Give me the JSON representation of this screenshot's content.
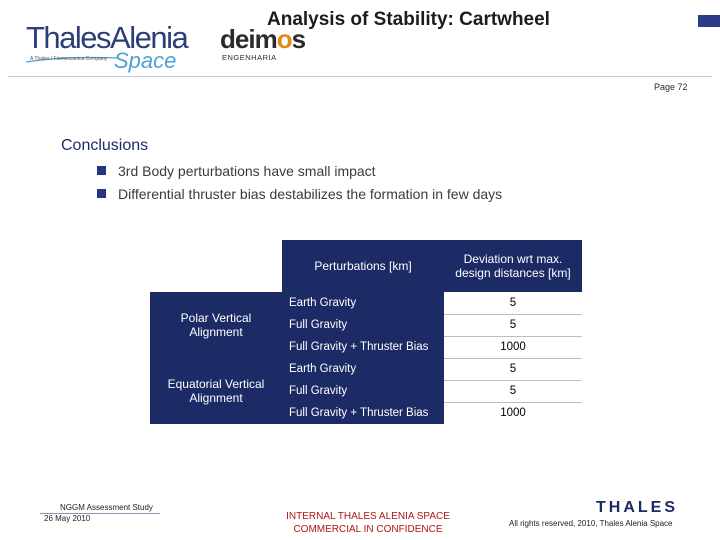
{
  "header": {
    "logo_name": "ThalesAlenia",
    "logo_tagline": "A Thales / Finmeccanica Company",
    "logo_space": "Space",
    "partner_logo": "deimos",
    "partner_subtitle": "ENGENHARIA",
    "title": "Analysis of Stability: Cartwheel",
    "page": "Page 72",
    "accent_color": "#1c2a66"
  },
  "conclusions": {
    "heading": "Conclusions",
    "bullets": [
      "3rd Body perturbations have small impact",
      "Differential thruster bias destabilizes the formation in few days"
    ]
  },
  "table": {
    "col_headers": [
      "Perturbations [km]",
      "Deviation wrt max. design distances [km]"
    ],
    "groups": [
      {
        "label": "Polar Vertical Alignment",
        "rows": [
          {
            "perturbation": "Earth Gravity",
            "deviation": "5"
          },
          {
            "perturbation": "Full Gravity",
            "deviation": "5"
          },
          {
            "perturbation": "Full Gravity + Thruster Bias",
            "deviation": "1000"
          }
        ]
      },
      {
        "label": "Equatorial Vertical Alignment",
        "rows": [
          {
            "perturbation": "Earth Gravity",
            "deviation": "5"
          },
          {
            "perturbation": "Full Gravity",
            "deviation": "5"
          },
          {
            "perturbation": "Full Gravity + Thruster Bias",
            "deviation": "1000"
          }
        ]
      }
    ]
  },
  "footer": {
    "doc_title": "NGGM Assessment Study",
    "date": "26 May 2010",
    "classification_line1": "INTERNAL THALES ALENIA SPACE",
    "classification_line2": "COMMERCIAL IN CONFIDENCE",
    "company_logo": "THALES",
    "rights": "All rights reserved, 2010, Thales Alenia Space"
  }
}
